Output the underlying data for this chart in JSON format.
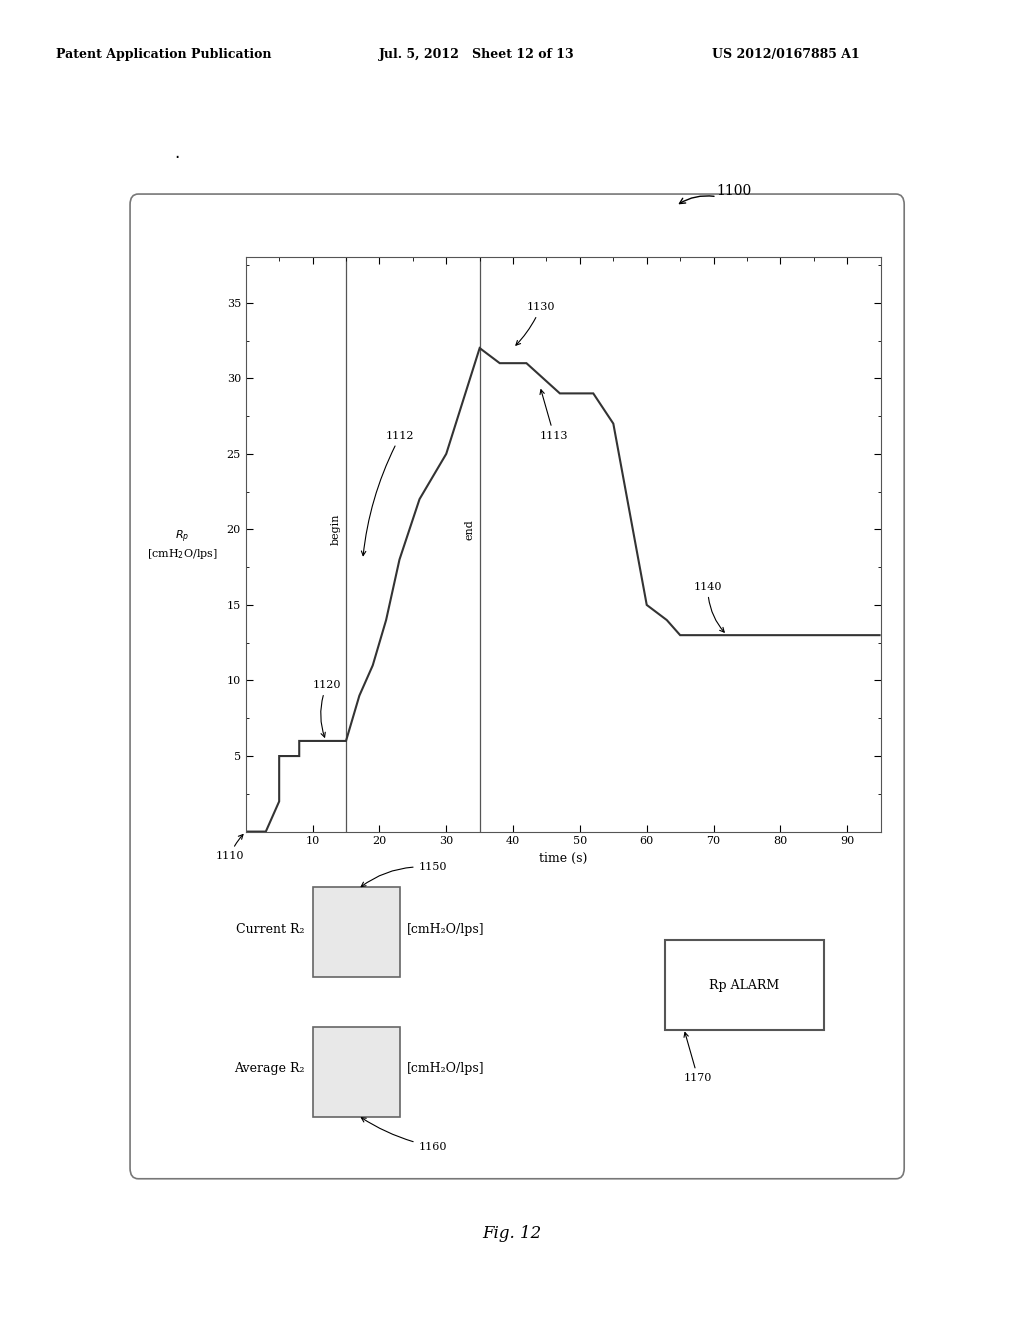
{
  "header_left": "Patent Application Publication",
  "header_mid": "Jul. 5, 2012   Sheet 12 of 13",
  "header_right": "US 2012/0167885 A1",
  "figure_label": "Fig. 12",
  "diagram_label": "1100",
  "bg_color": "#ffffff",
  "plot_step_x": [
    0,
    3,
    5,
    5,
    8,
    8,
    11,
    11,
    14,
    14,
    15,
    15,
    17,
    17,
    19,
    19,
    21,
    21,
    23,
    23,
    26,
    26,
    30,
    30,
    35,
    35,
    38,
    38,
    42,
    42,
    47,
    47,
    52,
    52,
    55,
    55,
    60,
    60,
    63,
    63,
    65,
    65,
    75,
    75,
    90,
    95
  ],
  "plot_step_y": [
    0,
    0,
    2,
    5,
    5,
    6,
    6,
    6,
    6,
    6,
    6,
    6,
    9,
    9,
    11,
    11,
    14,
    14,
    18,
    18,
    22,
    22,
    25,
    25,
    32,
    32,
    31,
    31,
    31,
    31,
    29,
    29,
    29,
    29,
    27,
    27,
    15,
    15,
    14,
    14,
    13,
    13,
    13,
    13,
    13,
    13
  ],
  "vline_begin_x": 15,
  "vline_end_x": 35,
  "begin_label": "begin",
  "end_label": "end",
  "xlabel": "time (s)",
  "xlim": [
    0,
    95
  ],
  "ylim": [
    0,
    38
  ],
  "xticks": [
    10,
    20,
    30,
    40,
    50,
    60,
    70,
    80,
    90
  ],
  "yticks": [
    5,
    10,
    15,
    20,
    25,
    30,
    35
  ],
  "label_1110": "1110",
  "label_1112": "1112",
  "label_1113": "1113",
  "label_1120": "1120",
  "label_1130": "1130",
  "label_1140": "1140",
  "label_1150": "1150",
  "label_1160": "1160",
  "label_1170": "1170",
  "current_rp_label": "Current R₂",
  "average_rp_label": "Average R₂",
  "units_label": "[cmH₂O/lps]",
  "alarm_label": "Rp ALARM",
  "line_color": "#333333",
  "line_width": 1.5
}
